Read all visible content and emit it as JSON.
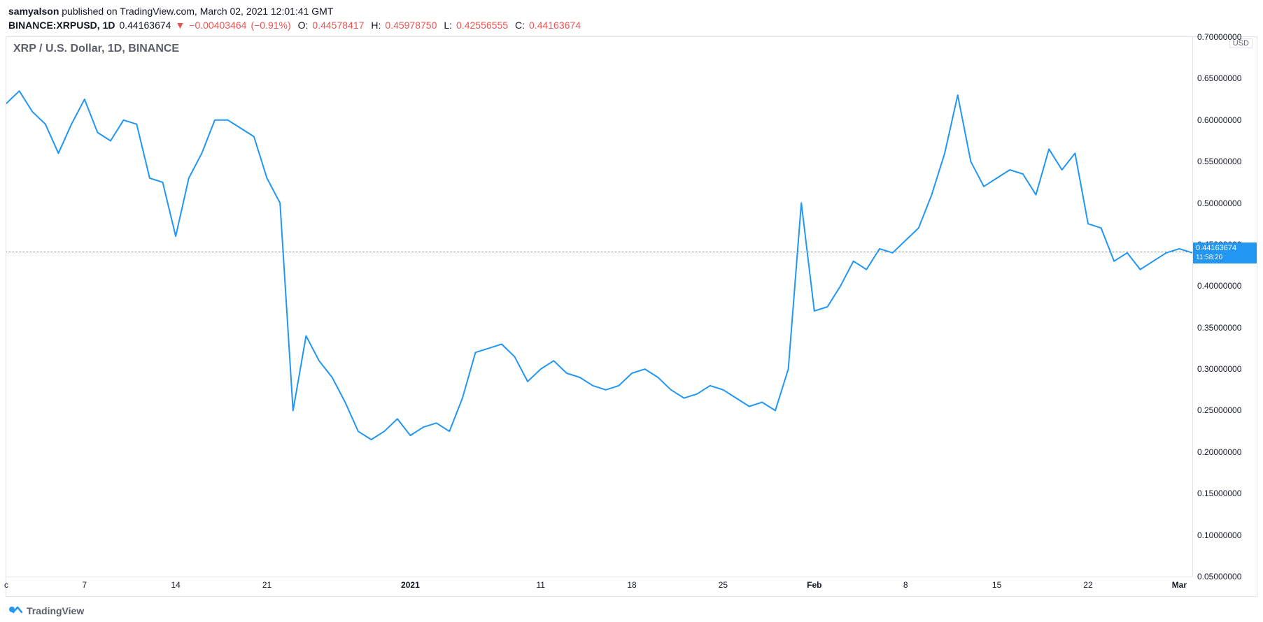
{
  "publication": {
    "author": "samyalson",
    "platform_text": "published on TradingView.com,",
    "date": "March 02, 2021 12:01:41 GMT"
  },
  "symbol_line": {
    "symbol": "BINANCE:XRPUSD, 1D",
    "last": "0.44163674",
    "change": "−0.00403464",
    "change_pct": "(−0.91%)",
    "o_label": "O:",
    "o": "0.44578417",
    "h_label": "H:",
    "h": "0.45978750",
    "l_label": "L:",
    "l": "0.42556555",
    "c_label": "C:",
    "c": "0.44163674",
    "arrow": "▼"
  },
  "chart": {
    "title": "XRP / U.S. Dollar, 1D, BINANCE",
    "type": "line",
    "line_color": "#2196f3",
    "line_width": 2,
    "background_color": "#ffffff",
    "border_color": "#e0e3eb",
    "y_unit": "USD",
    "ylim": [
      0.05,
      0.7
    ],
    "y_ticks": [
      {
        "v": 0.7,
        "label": "0.70000000"
      },
      {
        "v": 0.65,
        "label": "0.65000000"
      },
      {
        "v": 0.6,
        "label": "0.60000000"
      },
      {
        "v": 0.55,
        "label": "0.55000000"
      },
      {
        "v": 0.5,
        "label": "0.50000000"
      },
      {
        "v": 0.45,
        "label": "0.45000000"
      },
      {
        "v": 0.4,
        "label": "0.40000000"
      },
      {
        "v": 0.35,
        "label": "0.35000000"
      },
      {
        "v": 0.3,
        "label": "0.30000000"
      },
      {
        "v": 0.25,
        "label": "0.25000000"
      },
      {
        "v": 0.2,
        "label": "0.20000000"
      },
      {
        "v": 0.15,
        "label": "0.15000000"
      },
      {
        "v": 0.1,
        "label": "0.10000000"
      },
      {
        "v": 0.05,
        "label": "0.05000000"
      }
    ],
    "x_domain": [
      0,
      91
    ],
    "x_ticks": [
      {
        "i": 0,
        "label": "c",
        "bold": false
      },
      {
        "i": 6,
        "label": "7",
        "bold": false
      },
      {
        "i": 13,
        "label": "14",
        "bold": false
      },
      {
        "i": 20,
        "label": "21",
        "bold": false
      },
      {
        "i": 31,
        "label": "2021",
        "bold": true
      },
      {
        "i": 41,
        "label": "11",
        "bold": false
      },
      {
        "i": 48,
        "label": "18",
        "bold": false
      },
      {
        "i": 55,
        "label": "25",
        "bold": false
      },
      {
        "i": 62,
        "label": "Feb",
        "bold": true
      },
      {
        "i": 69,
        "label": "8",
        "bold": false
      },
      {
        "i": 76,
        "label": "15",
        "bold": false
      },
      {
        "i": 83,
        "label": "22",
        "bold": false
      },
      {
        "i": 90,
        "label": "Mar",
        "bold": true
      }
    ],
    "price_line": {
      "value": 0.44163674,
      "label": "0.44163674",
      "countdown": "11:58:20",
      "color": "#2196f3"
    },
    "series": [
      0.62,
      0.635,
      0.61,
      0.595,
      0.56,
      0.595,
      0.625,
      0.585,
      0.575,
      0.6,
      0.595,
      0.53,
      0.525,
      0.46,
      0.53,
      0.56,
      0.6,
      0.6,
      0.59,
      0.58,
      0.53,
      0.5,
      0.25,
      0.34,
      0.31,
      0.29,
      0.26,
      0.225,
      0.215,
      0.225,
      0.24,
      0.22,
      0.23,
      0.235,
      0.225,
      0.265,
      0.32,
      0.325,
      0.33,
      0.315,
      0.285,
      0.3,
      0.31,
      0.295,
      0.29,
      0.28,
      0.275,
      0.28,
      0.295,
      0.3,
      0.29,
      0.275,
      0.265,
      0.27,
      0.28,
      0.275,
      0.265,
      0.255,
      0.26,
      0.25,
      0.3,
      0.5,
      0.37,
      0.375,
      0.4,
      0.43,
      0.42,
      0.445,
      0.44,
      0.455,
      0.47,
      0.51,
      0.56,
      0.63,
      0.55,
      0.52,
      0.53,
      0.54,
      0.535,
      0.51,
      0.565,
      0.54,
      0.56,
      0.475,
      0.47,
      0.43,
      0.44,
      0.42,
      0.43,
      0.44,
      0.445,
      0.44
    ]
  },
  "footer": {
    "brand": "TradingView"
  }
}
